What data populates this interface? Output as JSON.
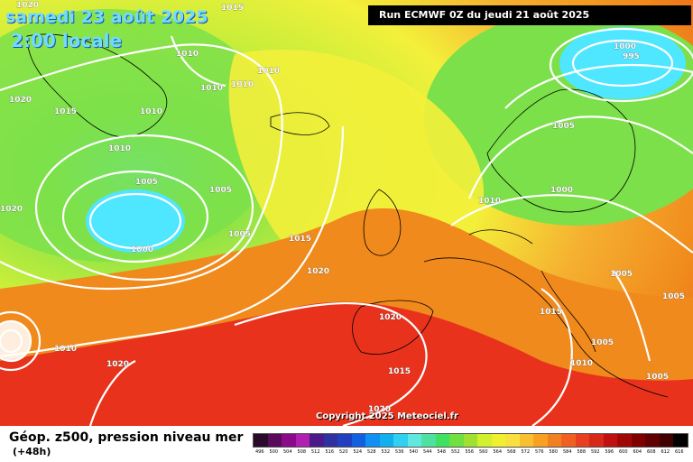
{
  "header": {
    "date": "samedi 23 août 2025",
    "time": "2:00 locale",
    "run": "Run ECMWF 0Z du jeudi 21 août 2025"
  },
  "copyright": "Copyright 2025 Meteociel.fr",
  "footer": {
    "title": "Géop. z500, pression niveau mer",
    "lead": "(+48h)"
  },
  "isobar_labels": [
    "1020",
    "1015",
    "1010",
    "1010",
    "1010",
    "1010",
    "1015",
    "1010",
    "1010",
    "1005",
    "1005",
    "1000",
    "1005",
    "1015",
    "1020",
    "1020",
    "1020",
    "1010",
    "1020",
    "1020",
    "1015",
    "1000",
    "995",
    "1005",
    "1000",
    "1010",
    "1005",
    "1015",
    "1005",
    "1005",
    "1010",
    "1005",
    "1020"
  ],
  "colors": {
    "low_center": "#4fe6ff",
    "green": "#7ce04a",
    "yellow": "#f3f03a",
    "orange": "#f08a1c",
    "red": "#e8321c",
    "isobar": "#ffffff"
  },
  "scale": {
    "values": [
      "496",
      "500",
      "504",
      "508",
      "512",
      "516",
      "520",
      "524",
      "528",
      "532",
      "536",
      "540",
      "544",
      "548",
      "552",
      "556",
      "560",
      "564",
      "568",
      "572",
      "576",
      "580",
      "584",
      "588",
      "592",
      "596",
      "600",
      "604",
      "608",
      "612",
      "616"
    ],
    "colors": [
      "#2a0a2a",
      "#5a0a5a",
      "#8a0a8a",
      "#b020b0",
      "#4a1a8a",
      "#3030a0",
      "#2040c0",
      "#1060e0",
      "#1090f0",
      "#10b0f0",
      "#30d0f0",
      "#60e8e0",
      "#50e0a0",
      "#40e060",
      "#70e040",
      "#a0e030",
      "#d0f030",
      "#f0f030",
      "#f8e040",
      "#f8c030",
      "#f8a020",
      "#f08020",
      "#f06020",
      "#e84020",
      "#d82818",
      "#c01010",
      "#a00808",
      "#800000",
      "#600000",
      "#400000",
      "#000000"
    ]
  }
}
